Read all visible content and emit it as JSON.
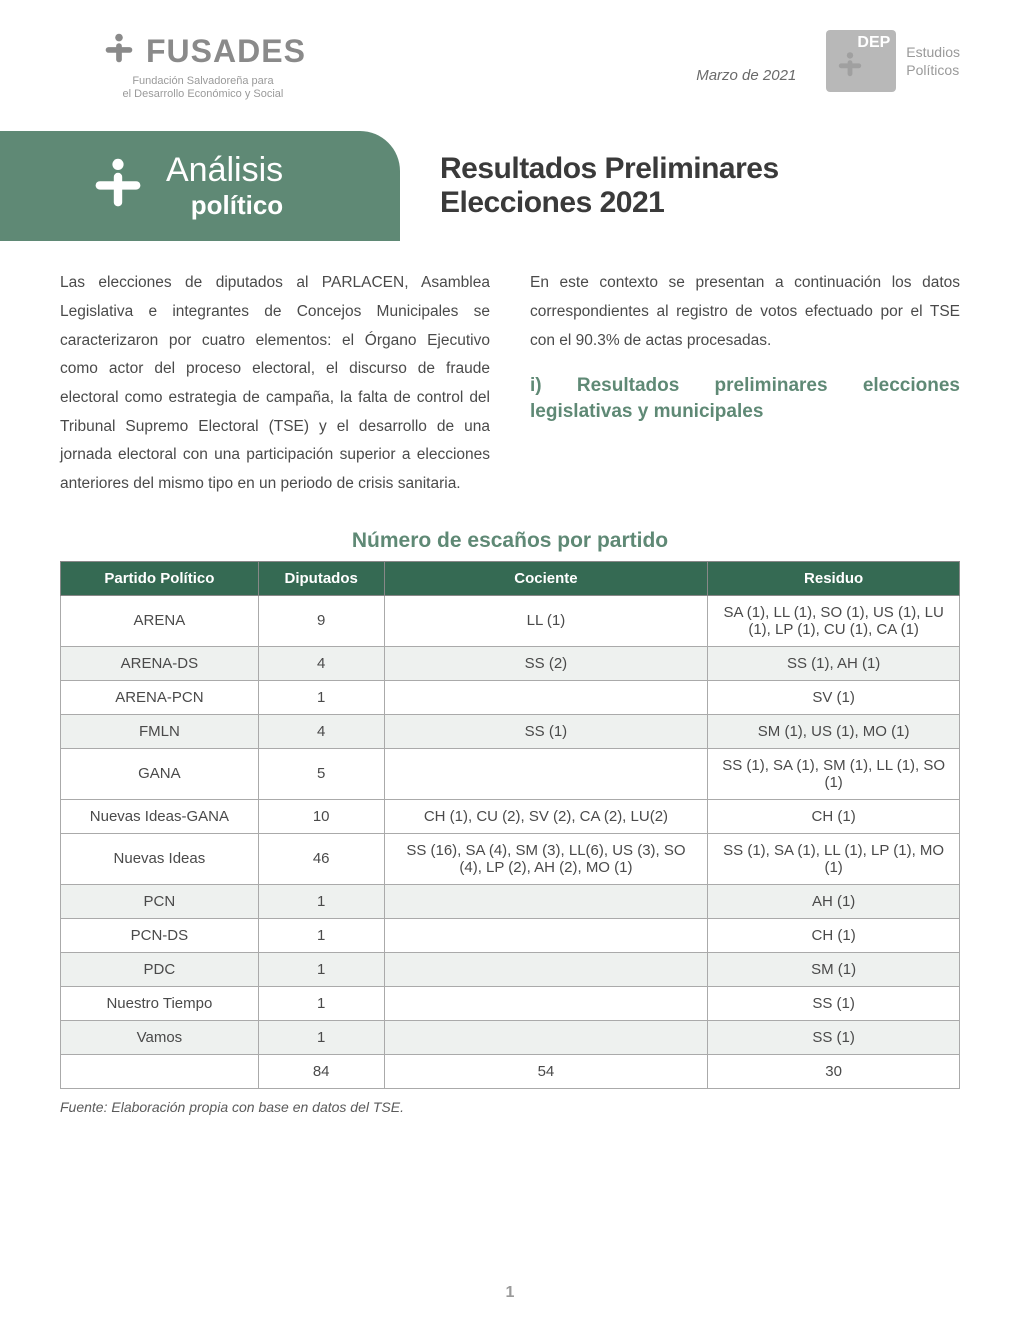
{
  "header": {
    "org_name": "FUSADES",
    "org_sub1": "Fundación Salvadoreña para",
    "org_sub2": "el Desarrollo Económico y Social",
    "date": "Marzo de 2021",
    "dep_label": "DEP",
    "dep_side1": "Estudios",
    "dep_side2": "Políticos"
  },
  "banner": {
    "line1": "Análisis",
    "line2": "político"
  },
  "title": {
    "line1": "Resultados Preliminares",
    "line2": "Elecciones 2021"
  },
  "body": {
    "left_para": "Las elecciones de diputados al PARLACEN, Asamblea Legislativa e integrantes de Concejos Municipales se caracterizaron por cuatro elementos: el Órgano Ejecutivo como actor del proceso electoral, el discurso de fraude electoral como estrategia de campaña, la falta de control del Tribunal Supremo Electoral (TSE) y el desarrollo de una jornada electoral con una participación superior a elecciones anteriores del mismo tipo en un periodo de crisis sanitaria.",
    "right_para": "En este contexto se presentan a continuación los datos correspondientes al registro de votos efectuado por el TSE con el 90.3% de actas procesadas.",
    "subheading": "i)  Resultados preliminares elecciones legislativas y municipales"
  },
  "table": {
    "title": "Número de escaños por partido",
    "columns": [
      "Partido Político",
      "Diputados",
      "Cociente",
      "Residuo"
    ],
    "rows": [
      {
        "alt": false,
        "cells": [
          "ARENA",
          "9",
          "LL (1)",
          "SA (1), LL (1), SO (1), US (1), LU (1), LP (1), CU (1), CA (1)"
        ]
      },
      {
        "alt": true,
        "cells": [
          "ARENA-DS",
          "4",
          "SS (2)",
          "SS (1), AH (1)"
        ]
      },
      {
        "alt": false,
        "cells": [
          "ARENA-PCN",
          "1",
          "",
          "SV (1)"
        ]
      },
      {
        "alt": true,
        "cells": [
          "FMLN",
          "4",
          "SS (1)",
          "SM (1), US (1), MO (1)"
        ]
      },
      {
        "alt": false,
        "cells": [
          "GANA",
          "5",
          "",
          "SS (1), SA (1), SM (1), LL (1), SO (1)"
        ]
      },
      {
        "alt": false,
        "cells": [
          "Nuevas Ideas-GANA",
          "10",
          "CH (1), CU (2), SV (2), CA (2), LU(2)",
          "CH (1)"
        ]
      },
      {
        "alt": false,
        "cells": [
          "Nuevas Ideas",
          "46",
          "SS (16), SA (4), SM (3), LL(6), US (3), SO (4), LP (2), AH (2), MO (1)",
          "SS (1), SA (1), LL (1), LP (1), MO (1)"
        ]
      },
      {
        "alt": true,
        "cells": [
          "PCN",
          "1",
          "",
          "AH (1)"
        ]
      },
      {
        "alt": false,
        "cells": [
          "PCN-DS",
          "1",
          "",
          "CH (1)"
        ]
      },
      {
        "alt": true,
        "cells": [
          "PDC",
          "1",
          "",
          "SM (1)"
        ]
      },
      {
        "alt": false,
        "cells": [
          "Nuestro Tiempo",
          "1",
          "",
          "SS (1)"
        ]
      },
      {
        "alt": true,
        "cells": [
          "Vamos",
          "1",
          "",
          "SS (1)"
        ]
      },
      {
        "alt": false,
        "cells": [
          "",
          "84",
          "54",
          "30"
        ]
      }
    ],
    "col_widths": [
      "22%",
      "14%",
      "36%",
      "28%"
    ]
  },
  "source": "Fuente: Elaboración propia con base en datos del TSE.",
  "page_number": "1",
  "colors": {
    "brand_green": "#5f8975",
    "header_green": "#356a53",
    "grey_text": "#4a4a4a",
    "light_row": "#eef1ef"
  }
}
